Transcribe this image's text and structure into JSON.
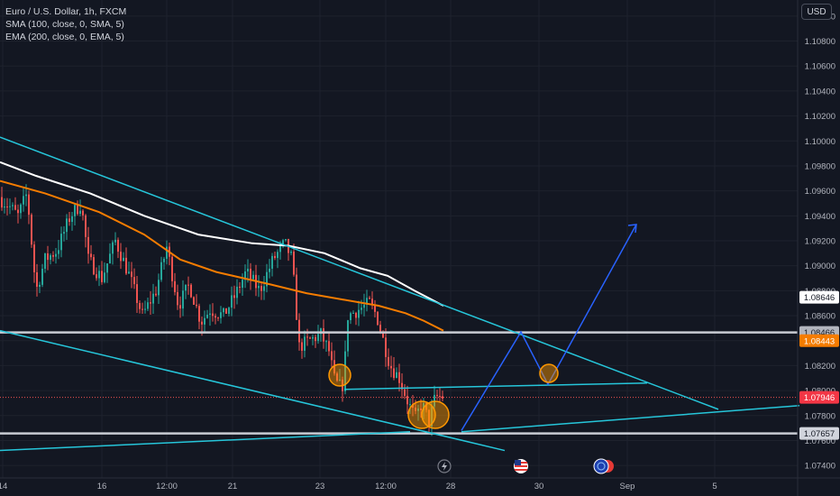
{
  "header": {
    "symbol": "Euro / U.S. Dollar, 1h, FXCM",
    "sma_label": "SMA (100, close, 0, SMA, 5)",
    "ema_label": "EMA (200, close, 0, EMA, 5)",
    "currency_button": "USD"
  },
  "chart_data": {
    "type": "candlestick",
    "y_ticks": [
      "1.11000",
      "1.10800",
      "1.10600",
      "1.10400",
      "1.10200",
      "1.10000",
      "1.09800",
      "1.09600",
      "1.09400",
      "1.09200",
      "1.09000",
      "1.08800",
      "1.08600",
      "1.08400",
      "1.08200",
      "1.08000",
      "1.07800",
      "1.07600",
      "1.07400"
    ],
    "y_tick_values": [
      1.11,
      1.108,
      1.106,
      1.104,
      1.102,
      1.1,
      1.098,
      1.096,
      1.094,
      1.092,
      1.09,
      1.088,
      1.086,
      1.084,
      1.082,
      1.08,
      1.078,
      1.076,
      1.074
    ],
    "ylim": [
      1.073,
      1.111
    ],
    "x_ticks": [
      "14",
      "16",
      "12:00",
      "21",
      "23",
      "12:00",
      "28",
      "30",
      "Sep",
      "5"
    ],
    "price_tags": [
      {
        "label": "1.08646",
        "value": 1.08646,
        "bg": "#ffffff",
        "fg": "#131722"
      },
      {
        "label": "1.08466",
        "value": 1.08466,
        "bg": "#b2b5be",
        "fg": "#131722"
      },
      {
        "label": "1.08443",
        "value": 1.08443,
        "bg": "#f57c00",
        "fg": "#ffffff"
      },
      {
        "label": "1.07946",
        "value": 1.07946,
        "bg": "#f23645",
        "fg": "#ffffff"
      },
      {
        "label": "1.07657",
        "value": 1.07657,
        "bg": "#d1d4dc",
        "fg": "#131722"
      }
    ],
    "horizontal_levels": [
      1.08466,
      1.07657
    ],
    "current_price": 1.07946,
    "colors": {
      "up": "#26a69a",
      "down": "#ef5350",
      "sma": "#ffffff",
      "ema": "#f57c00",
      "trendline": "#26c6da",
      "projection": "#2962ff",
      "circle": "#ff9800",
      "background": "#131722",
      "grid": "#1e222d"
    }
  },
  "bottom_icons": [
    "lightning-icon",
    "us-flag-icon",
    "globe-flag-icon"
  ]
}
